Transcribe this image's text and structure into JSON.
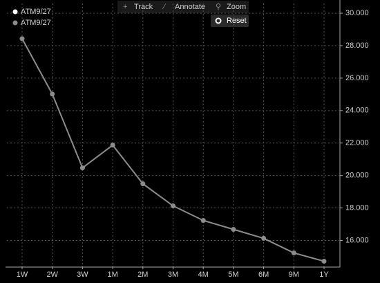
{
  "chart_data": {
    "type": "line",
    "categories": [
      "1W",
      "2W",
      "3W",
      "1M",
      "2M",
      "3M",
      "4M",
      "5M",
      "6M",
      "9M",
      "1Y"
    ],
    "series": [
      {
        "name": "ATM9/27",
        "color": "#8c8c8c",
        "values": [
          28.43,
          25.02,
          20.47,
          21.87,
          19.49,
          18.13,
          17.23,
          16.68,
          16.13,
          15.23,
          14.72
        ]
      }
    ],
    "legend": [
      {
        "name": "ATM9/27",
        "color": "#ffffff"
      },
      {
        "name": "ATM9/27",
        "color": "#8c8c8c"
      }
    ],
    "ylim": [
      14.4,
      30.6
    ],
    "yticks": [
      {
        "value": 16,
        "label": "16.000"
      },
      {
        "value": 18,
        "label": "18.000"
      },
      {
        "value": 20,
        "label": "20.000"
      },
      {
        "value": 22,
        "label": "22.000"
      },
      {
        "value": 24,
        "label": "24.000"
      },
      {
        "value": 26,
        "label": "26.000"
      },
      {
        "value": 28,
        "label": "28.000"
      },
      {
        "value": 30,
        "label": "30.000"
      }
    ],
    "grid": true
  },
  "toolbar": [
    "Track",
    "Annotate",
    "Zoom"
  ],
  "reset_button": "Reset"
}
